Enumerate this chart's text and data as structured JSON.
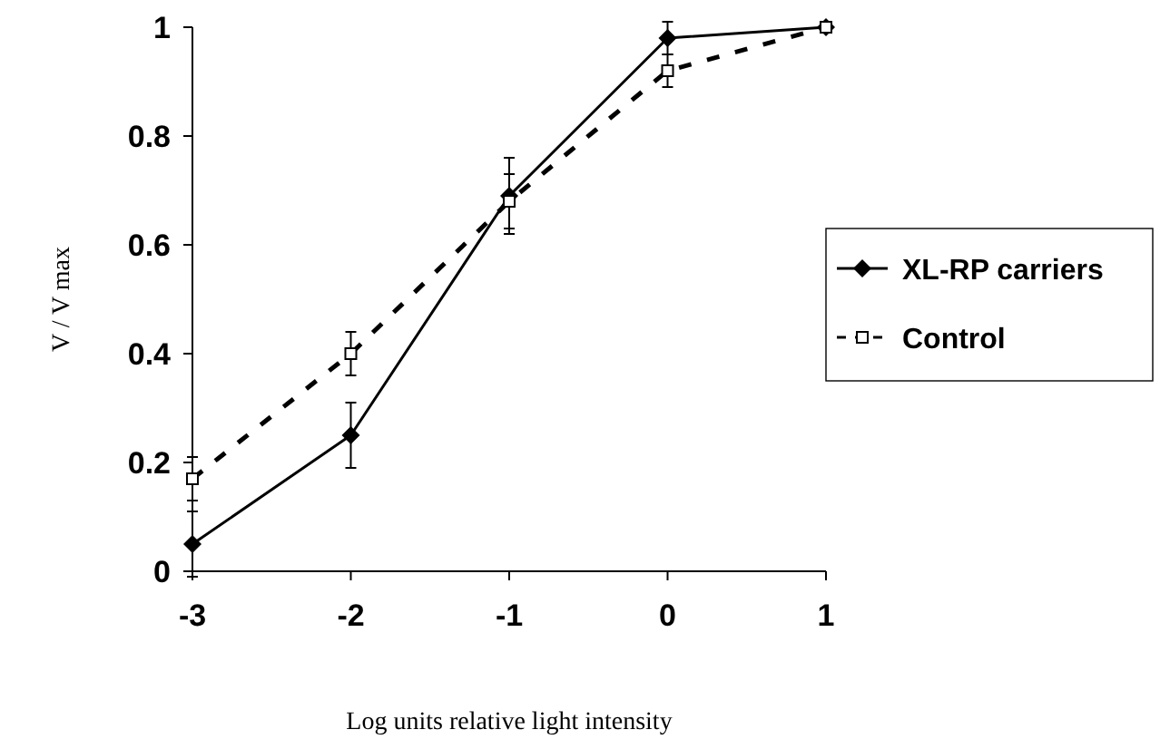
{
  "chart_data": {
    "type": "line",
    "xlabel": "Log units relative light intensity",
    "ylabel": "V / V max",
    "x": [
      -3,
      -2,
      -1,
      0,
      1
    ],
    "xlim": [
      -3,
      1
    ],
    "xticks": [
      -3,
      -2,
      -1,
      0,
      1
    ],
    "ylim": [
      0,
      1
    ],
    "yticks": [
      0,
      0.2,
      0.4,
      0.6,
      0.8,
      1
    ],
    "legend": "right",
    "grid": false,
    "series": [
      {
        "name": "XL-RP carriers",
        "color": "#000000",
        "values": [
          0.05,
          0.25,
          0.69,
          0.98,
          1.0
        ],
        "errors": [
          0.06,
          0.06,
          0.07,
          0.03,
          null
        ],
        "marker": "diamond",
        "line_style": "solid"
      },
      {
        "name": "Control",
        "color": "#000000",
        "values": [
          0.17,
          0.4,
          0.68,
          0.92,
          1.0
        ],
        "errors": [
          0.04,
          0.04,
          0.05,
          0.03,
          null
        ],
        "marker": "square",
        "line_style": "dashed"
      }
    ]
  }
}
